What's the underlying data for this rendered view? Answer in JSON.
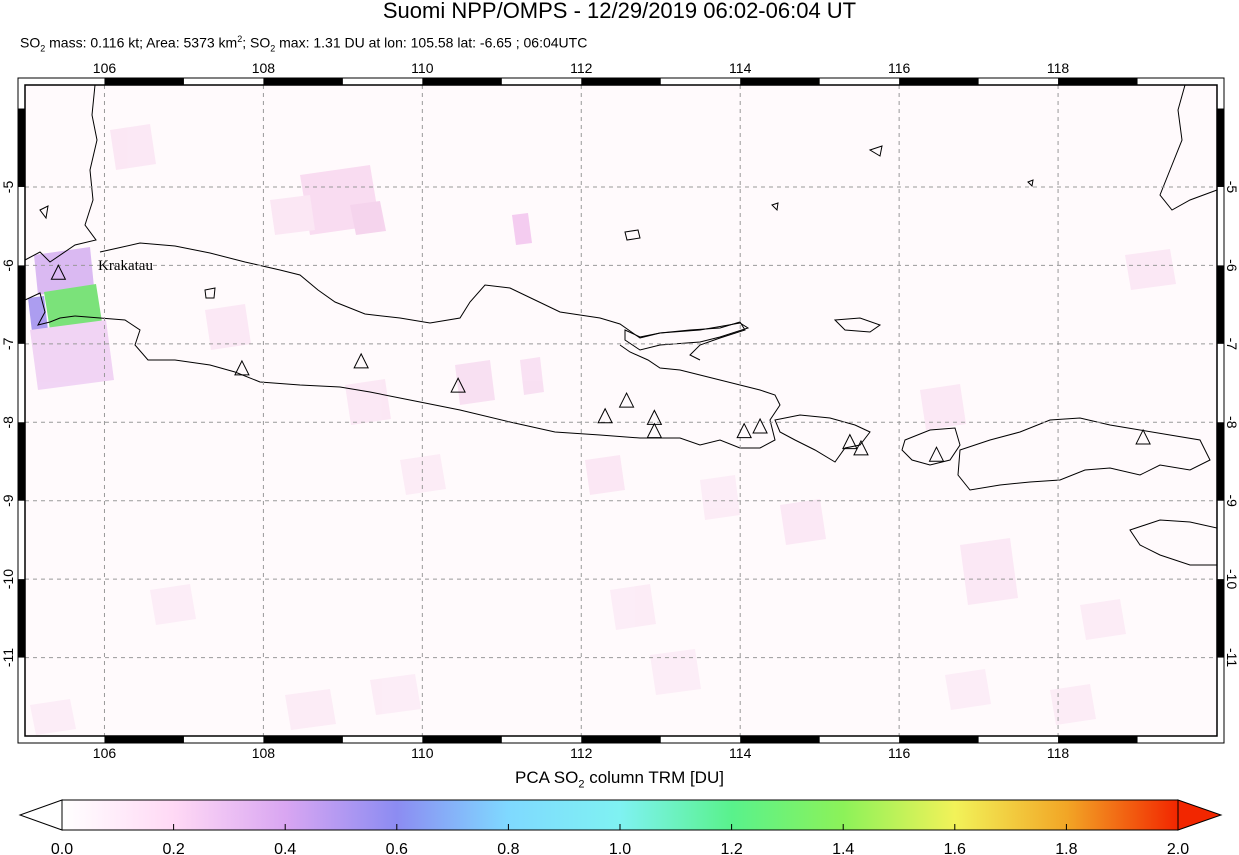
{
  "header": {
    "title": "Suomi NPP/OMPS - 12/29/2019 06:02-06:04 UT",
    "subtitle": {
      "so2_mass_label": "SO",
      "so2_mass_value": "mass: 0.116 kt; Area: 5373 km",
      "area_sup": "2",
      "so2_max_prefix": "; SO",
      "so2_max_value": "max: 1.31 DU at lon: 105.58 lat: -6.65 ; 06:04UTC",
      "sub2": "2"
    }
  },
  "map": {
    "lon_range": [
      105,
      120
    ],
    "lat_range": [
      -12,
      -3.7
    ],
    "lon_ticks": [
      "106",
      "108",
      "110",
      "112",
      "114",
      "116",
      "118"
    ],
    "lat_ticks": [
      "-5",
      "-6",
      "-7",
      "-8",
      "-9",
      "-10",
      "-11"
    ],
    "volcano_label": "Krakatau",
    "volcanoes": [
      {
        "lon": 105.42,
        "lat": -6.1
      },
      {
        "lon": 107.73,
        "lat": -7.32
      },
      {
        "lon": 109.23,
        "lat": -7.23
      },
      {
        "lon": 110.45,
        "lat": -7.54
      },
      {
        "lon": 112.3,
        "lat": -7.93
      },
      {
        "lon": 112.57,
        "lat": -7.73
      },
      {
        "lon": 112.92,
        "lat": -7.95
      },
      {
        "lon": 112.92,
        "lat": -8.12
      },
      {
        "lon": 114.05,
        "lat": -8.12
      },
      {
        "lon": 114.25,
        "lat": -8.06
      },
      {
        "lon": 115.38,
        "lat": -8.26
      },
      {
        "lon": 115.52,
        "lat": -8.34
      },
      {
        "lon": 116.47,
        "lat": -8.42
      },
      {
        "lon": 119.07,
        "lat": -8.2
      }
    ]
  },
  "colorbar": {
    "title_prefix": "PCA SO",
    "title_sub": "2",
    "title_suffix": " column TRM [DU]",
    "ticks": [
      "0.0",
      "0.2",
      "0.4",
      "0.6",
      "0.8",
      "1.0",
      "1.2",
      "1.4",
      "1.6",
      "1.8",
      "2.0"
    ],
    "colors": [
      "#ffffff",
      "#ffd9f5",
      "#d9a6f2",
      "#8c8cf2",
      "#7fd9ff",
      "#7ff2f2",
      "#59f28c",
      "#8cf259",
      "#f2f259",
      "#f2a626",
      "#f22600"
    ]
  }
}
